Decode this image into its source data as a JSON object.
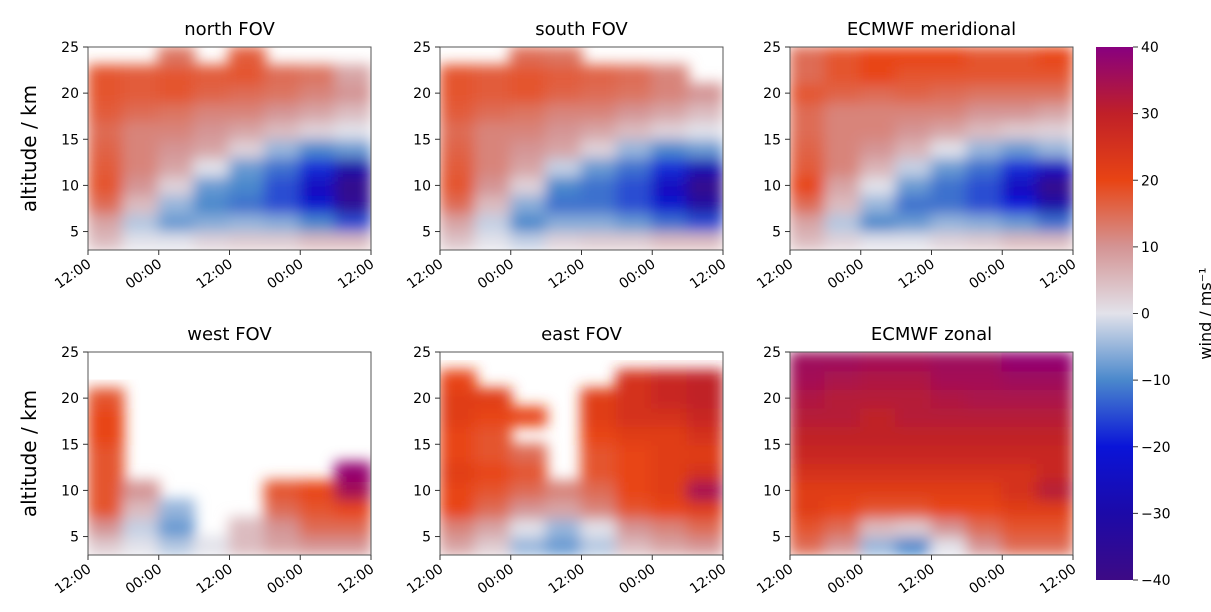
{
  "chart_data": [
    {
      "type": "heatmap",
      "title": "north FOV",
      "ylabel": "altitude / km",
      "x": [
        0,
        6,
        12,
        18,
        24,
        30,
        36,
        42,
        48
      ],
      "y": [
        3,
        5,
        7,
        9,
        11,
        13,
        15,
        17,
        19,
        21,
        23,
        25
      ],
      "xlim": [
        0,
        48
      ],
      "ylim": [
        3,
        25
      ],
      "xticks": [
        {
          "value": 0,
          "label": "12:00"
        },
        {
          "value": 12,
          "label": "00:00"
        },
        {
          "value": 24,
          "label": "12:00"
        },
        {
          "value": 36,
          "label": "00:00"
        },
        {
          "value": 48,
          "label": "12:00"
        }
      ],
      "yticks": [
        5,
        10,
        15,
        20,
        25
      ],
      "values": [
        [
          5,
          0,
          0,
          2,
          3,
          3,
          5,
          5
        ],
        [
          8,
          -3,
          -8,
          -6,
          -5,
          -6,
          -10,
          -15
        ],
        [
          15,
          5,
          -5,
          -10,
          -12,
          -15,
          -22,
          -35
        ],
        [
          18,
          10,
          2,
          -8,
          -10,
          -15,
          -25,
          -38
        ],
        [
          17,
          12,
          8,
          0,
          -8,
          -12,
          -18,
          -30
        ],
        [
          16,
          12,
          10,
          8,
          2,
          -5,
          -10,
          -8
        ],
        [
          15,
          12,
          12,
          10,
          8,
          5,
          2,
          0
        ],
        [
          17,
          15,
          14,
          12,
          12,
          10,
          8,
          5
        ],
        [
          18,
          17,
          18,
          16,
          15,
          14,
          12,
          10
        ],
        [
          18,
          17,
          18,
          17,
          18,
          15,
          14,
          8
        ],
        [
          null,
          null,
          14,
          null,
          17,
          null,
          null,
          null
        ]
      ]
    },
    {
      "type": "heatmap",
      "title": "south FOV",
      "x": [
        0,
        6,
        12,
        18,
        24,
        30,
        36,
        42,
        48
      ],
      "y": [
        3,
        5,
        7,
        9,
        11,
        13,
        15,
        17,
        19,
        21,
        23,
        25
      ],
      "xlim": [
        0,
        48
      ],
      "ylim": [
        3,
        25
      ],
      "xticks": [
        {
          "value": 0,
          "label": "12:00"
        },
        {
          "value": 12,
          "label": "00:00"
        },
        {
          "value": 24,
          "label": "12:00"
        },
        {
          "value": 36,
          "label": "00:00"
        },
        {
          "value": 48,
          "label": "12:00"
        }
      ],
      "yticks": [
        5,
        10,
        15,
        20,
        25
      ],
      "values": [
        [
          4,
          0,
          -2,
          2,
          3,
          3,
          5,
          5
        ],
        [
          8,
          -2,
          -10,
          -6,
          -6,
          -8,
          -12,
          -15
        ],
        [
          15,
          5,
          -6,
          -12,
          -12,
          -15,
          -22,
          -32
        ],
        [
          18,
          10,
          2,
          -10,
          -12,
          -15,
          -25,
          -38
        ],
        [
          17,
          12,
          8,
          -2,
          -8,
          -12,
          -18,
          -28
        ],
        [
          16,
          12,
          10,
          8,
          2,
          -5,
          -10,
          -8
        ],
        [
          15,
          12,
          12,
          10,
          8,
          5,
          2,
          0
        ],
        [
          17,
          15,
          14,
          12,
          12,
          10,
          8,
          5
        ],
        [
          18,
          17,
          18,
          16,
          15,
          14,
          12,
          10
        ],
        [
          18,
          17,
          18,
          17,
          16,
          15,
          12,
          null
        ],
        [
          null,
          null,
          15,
          14,
          null,
          null,
          null,
          null
        ]
      ]
    },
    {
      "type": "heatmap",
      "title": "ECMWF meridional",
      "x": [
        0,
        6,
        12,
        18,
        24,
        30,
        36,
        42,
        48
      ],
      "y": [
        3,
        5,
        7,
        9,
        11,
        13,
        15,
        17,
        19,
        21,
        23,
        25
      ],
      "xlim": [
        0,
        48
      ],
      "ylim": [
        3,
        25
      ],
      "xticks": [
        {
          "value": 0,
          "label": "12:00"
        },
        {
          "value": 12,
          "label": "00:00"
        },
        {
          "value": 24,
          "label": "12:00"
        },
        {
          "value": 36,
          "label": "00:00"
        },
        {
          "value": 48,
          "label": "12:00"
        }
      ],
      "yticks": [
        5,
        10,
        15,
        20,
        25
      ],
      "values": [
        [
          5,
          2,
          0,
          0,
          2,
          3,
          5,
          5
        ],
        [
          8,
          -3,
          -10,
          -8,
          -5,
          -6,
          -8,
          -12
        ],
        [
          15,
          5,
          -5,
          -12,
          -12,
          -15,
          -20,
          -30
        ],
        [
          20,
          8,
          0,
          -8,
          -12,
          -15,
          -25,
          -38
        ],
        [
          17,
          12,
          6,
          -2,
          -8,
          -12,
          -18,
          -25
        ],
        [
          16,
          12,
          10,
          6,
          0,
          -5,
          -8,
          -5
        ],
        [
          15,
          12,
          12,
          10,
          8,
          5,
          3,
          2
        ],
        [
          15,
          12,
          12,
          12,
          12,
          10,
          10,
          8
        ],
        [
          18,
          16,
          15,
          16,
          15,
          14,
          14,
          14
        ],
        [
          15,
          18,
          20,
          18,
          18,
          18,
          18,
          18
        ],
        [
          15,
          18,
          20,
          20,
          20,
          18,
          18,
          20
        ]
      ]
    },
    {
      "type": "heatmap",
      "title": "west FOV",
      "ylabel": "altitude / km",
      "x": [
        0,
        6,
        12,
        18,
        24,
        30,
        36,
        42,
        48
      ],
      "y": [
        3,
        5,
        7,
        9,
        11,
        13,
        15,
        17,
        19,
        21,
        23,
        25
      ],
      "xlim": [
        0,
        48
      ],
      "ylim": [
        3,
        25
      ],
      "xticks": [
        {
          "value": 0,
          "label": "12:00"
        },
        {
          "value": 12,
          "label": "00:00"
        },
        {
          "value": 24,
          "label": "12:00"
        },
        {
          "value": 36,
          "label": "00:00"
        },
        {
          "value": 48,
          "label": "12:00"
        }
      ],
      "yticks": [
        5,
        10,
        15,
        20,
        25
      ],
      "values": [
        [
          3,
          0,
          -3,
          0,
          5,
          8,
          10,
          10
        ],
        [
          10,
          -2,
          -8,
          null,
          5,
          10,
          15,
          15
        ],
        [
          18,
          5,
          -5,
          null,
          null,
          15,
          18,
          20
        ],
        [
          18,
          10,
          null,
          null,
          null,
          18,
          20,
          35
        ],
        [
          18,
          null,
          null,
          null,
          null,
          null,
          null,
          38
        ],
        [
          18,
          null,
          null,
          null,
          null,
          null,
          null,
          null
        ],
        [
          20,
          null,
          null,
          null,
          null,
          null,
          null,
          null
        ],
        [
          20,
          null,
          null,
          null,
          null,
          null,
          null,
          null
        ],
        [
          18,
          null,
          null,
          null,
          null,
          null,
          null,
          null
        ],
        [
          null,
          null,
          null,
          null,
          null,
          null,
          null,
          null
        ],
        [
          null,
          null,
          null,
          null,
          null,
          null,
          null,
          null
        ]
      ]
    },
    {
      "type": "heatmap",
      "title": "east FOV",
      "x": [
        0,
        6,
        12,
        18,
        24,
        30,
        36,
        42,
        48
      ],
      "y": [
        3,
        5,
        7,
        9,
        11,
        13,
        15,
        17,
        19,
        21,
        23,
        25
      ],
      "xlim": [
        0,
        48
      ],
      "ylim": [
        3,
        25
      ],
      "xticks": [
        {
          "value": 0,
          "label": "12:00"
        },
        {
          "value": 12,
          "label": "00:00"
        },
        {
          "value": 24,
          "label": "12:00"
        },
        {
          "value": 36,
          "label": "00:00"
        },
        {
          "value": 48,
          "label": "12:00"
        }
      ],
      "yticks": [
        5,
        10,
        15,
        20,
        25
      ],
      "values": [
        [
          8,
          3,
          -5,
          -8,
          -3,
          5,
          8,
          10
        ],
        [
          12,
          8,
          0,
          -5,
          0,
          10,
          12,
          15
        ],
        [
          20,
          15,
          10,
          8,
          12,
          18,
          20,
          22
        ],
        [
          20,
          18,
          15,
          12,
          15,
          20,
          22,
          35
        ],
        [
          22,
          20,
          18,
          null,
          18,
          20,
          22,
          25
        ],
        [
          20,
          18,
          15,
          null,
          18,
          20,
          22,
          22
        ],
        [
          20,
          18,
          null,
          null,
          20,
          22,
          22,
          25
        ],
        [
          22,
          20,
          20,
          null,
          22,
          25,
          25,
          28
        ],
        [
          22,
          22,
          null,
          null,
          22,
          25,
          28,
          30
        ],
        [
          20,
          null,
          null,
          null,
          null,
          25,
          28,
          30
        ],
        [
          null,
          null,
          null,
          null,
          null,
          null,
          null,
          null
        ]
      ]
    },
    {
      "type": "heatmap",
      "title": "ECMWF zonal",
      "x": [
        0,
        6,
        12,
        18,
        24,
        30,
        36,
        42,
        48
      ],
      "y": [
        3,
        5,
        7,
        9,
        11,
        13,
        15,
        17,
        19,
        21,
        23,
        25
      ],
      "xlim": [
        0,
        48
      ],
      "ylim": [
        3,
        25
      ],
      "xticks": [
        {
          "value": 0,
          "label": "12:00"
        },
        {
          "value": 12,
          "label": "00:00"
        },
        {
          "value": 24,
          "label": "12:00"
        },
        {
          "value": 36,
          "label": "00:00"
        },
        {
          "value": 48,
          "label": "12:00"
        }
      ],
      "yticks": [
        5,
        10,
        15,
        20,
        25
      ],
      "values": [
        [
          15,
          10,
          -5,
          -10,
          0,
          10,
          15,
          15
        ],
        [
          18,
          15,
          5,
          3,
          10,
          15,
          18,
          18
        ],
        [
          22,
          20,
          18,
          18,
          20,
          20,
          22,
          22
        ],
        [
          22,
          22,
          22,
          22,
          22,
          22,
          25,
          32
        ],
        [
          25,
          25,
          25,
          25,
          25,
          25,
          25,
          28
        ],
        [
          28,
          28,
          28,
          28,
          28,
          28,
          28,
          28
        ],
        [
          30,
          30,
          30,
          30,
          30,
          30,
          30,
          30
        ],
        [
          32,
          32,
          30,
          32,
          32,
          32,
          32,
          32
        ],
        [
          33,
          32,
          32,
          32,
          33,
          34,
          34,
          34
        ],
        [
          35,
          34,
          33,
          33,
          35,
          35,
          36,
          36
        ],
        [
          36,
          36,
          35,
          35,
          36,
          36,
          38,
          38
        ]
      ]
    },
    {
      "type": "colorbar",
      "label": "wind / ms⁻¹",
      "clim": [
        -40,
        40
      ],
      "colors": [
        "#3d0a85",
        "#1c0aa8",
        "#0a14d8",
        "#4a88cc",
        "#e2e2ea",
        "#d49494",
        "#e84414",
        "#c02028",
        "#88007f"
      ],
      "ticks": [
        {
          "value": -40,
          "label": "−40"
        },
        {
          "value": -30,
          "label": "−30"
        },
        {
          "value": -20,
          "label": "−20"
        },
        {
          "value": -10,
          "label": "−10"
        },
        0,
        10,
        20,
        30,
        40
      ]
    }
  ]
}
